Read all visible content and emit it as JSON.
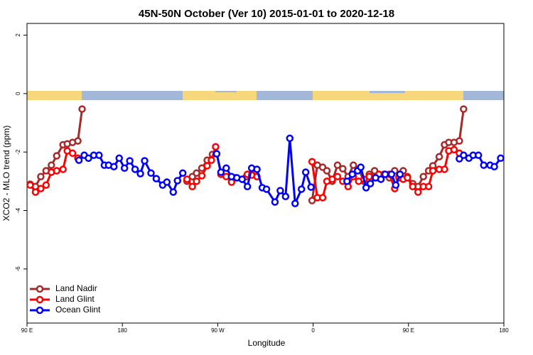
{
  "chart_data": {
    "type": "line",
    "title": "45N-50N October (Ver 10)   2015-01-01 to 2020-12-18",
    "x_label": "Longitude",
    "y_label": "XCO2 - MLO trend (ppm)",
    "xlim": [
      90,
      540
    ],
    "ylim": [
      -7.85,
      2.4
    ],
    "xticks": [
      {
        "value": 90,
        "label": "90 E"
      },
      180,
      {
        "value": 270,
        "label": "90 W"
      },
      {
        "value": 360,
        "label": "0"
      },
      {
        "value": 450,
        "label": "90 E"
      },
      {
        "value": 540,
        "label": "180"
      }
    ],
    "yticks": [
      -6,
      -4,
      -2,
      0,
      2
    ],
    "legend": "bottomleft",
    "series": [
      {
        "name": "Land Nadir",
        "color": "#a52a2a",
        "x": [
          93,
          98,
          103,
          108,
          113,
          118,
          124,
          128,
          133,
          138,
          142,
          null,
          241,
          246,
          250,
          255,
          260,
          265,
          null,
          297,
          302,
          null,
          359,
          364,
          369,
          373,
          378,
          383,
          388,
          393,
          398,
          403,
          408,
          413,
          418,
          422,
          427,
          432,
          437,
          441,
          445,
          449,
          454,
          459,
          464,
          469,
          473,
          479,
          484,
          488,
          493,
          498,
          502
        ],
        "values": [
          -3.1,
          -3.18,
          -2.84,
          -2.64,
          -2.45,
          -2.13,
          -1.75,
          -1.72,
          -1.67,
          -1.62,
          -0.53,
          null,
          -3.0,
          -2.84,
          -2.72,
          -2.55,
          -2.28,
          -2.08,
          null,
          -2.84,
          -2.76,
          null,
          -3.66,
          -2.45,
          -2.52,
          -2.64,
          -3.0,
          -2.45,
          -2.57,
          -2.84,
          -2.45,
          -2.59,
          -3.0,
          -2.76,
          -2.64,
          -2.88,
          -2.76,
          -2.88,
          -2.64,
          -2.84,
          -2.64,
          -2.84,
          -3.08,
          -3.18,
          -2.84,
          -2.64,
          -2.47,
          -2.16,
          -1.75,
          -1.67,
          -1.67,
          -1.62,
          -0.53
        ]
      },
      {
        "name": "Land Glint",
        "color": "#ff0000",
        "x": [
          93,
          98,
          103,
          108,
          113,
          118,
          124,
          128,
          133,
          138,
          null,
          241,
          246,
          250,
          255,
          260,
          264,
          268,
          273,
          278,
          283,
          287,
          293,
          298,
          302,
          307,
          null,
          359,
          364,
          369,
          373,
          378,
          383,
          388,
          393,
          398,
          403,
          408,
          413,
          418,
          422,
          427,
          432,
          437,
          441,
          445,
          449,
          454,
          459,
          464,
          469,
          473,
          479,
          484,
          488,
          493,
          498
        ],
        "values": [
          -3.13,
          -3.37,
          -3.25,
          -3.13,
          -2.69,
          -2.64,
          -2.59,
          -1.96,
          -2.04,
          -2.21,
          null,
          -2.93,
          -3.18,
          -3.0,
          -2.81,
          -2.47,
          -2.28,
          -1.82,
          -2.76,
          -2.84,
          -3.03,
          -2.88,
          -2.93,
          -2.76,
          -2.79,
          -2.84,
          null,
          -2.33,
          -3.56,
          -3.56,
          -3.0,
          -2.93,
          -2.84,
          -3.0,
          -3.18,
          -2.84,
          -3.0,
          -2.93,
          -2.84,
          -2.88,
          -2.76,
          -2.76,
          -2.76,
          -3.25,
          -2.88,
          -2.93,
          -2.88,
          -3.18,
          -3.37,
          -3.18,
          -3.18,
          -2.64,
          -2.59,
          -2.59,
          -1.96,
          -1.92,
          -2.04
        ]
      },
      {
        "name": "Ocean Glint",
        "color": "#0000ff",
        "x": [
          139,
          144,
          148,
          153,
          158,
          163,
          167,
          172,
          177,
          182,
          187,
          192,
          197,
          201,
          207,
          212,
          218,
          222,
          228,
          232,
          237,
          null,
          269,
          273,
          278,
          283,
          288,
          293,
          298,
          302,
          307,
          312,
          316,
          324,
          329,
          334,
          338,
          343,
          349,
          353,
          358,
          null,
          392,
          397,
          402,
          405,
          410,
          414,
          419,
          424,
          428,
          434,
          438,
          442,
          null,
          498,
          502,
          507,
          511,
          516,
          521,
          527,
          531,
          537
        ],
        "values": [
          -2.28,
          -2.11,
          -2.21,
          -2.11,
          -2.11,
          -2.45,
          -2.45,
          -2.5,
          -2.21,
          -2.55,
          -2.3,
          -2.59,
          -2.74,
          -2.3,
          -2.72,
          -2.91,
          -3.13,
          -3.03,
          -3.37,
          -2.98,
          -2.72,
          null,
          -2.06,
          -2.69,
          -2.55,
          -2.84,
          -2.88,
          -2.93,
          -3.18,
          -2.55,
          -2.59,
          -3.22,
          -3.27,
          -3.71,
          -3.32,
          -3.52,
          -1.53,
          -3.76,
          -3.27,
          -2.69,
          -3.2,
          null,
          -3.0,
          -2.76,
          -2.64,
          -2.52,
          -3.22,
          -3.08,
          -2.88,
          -2.93,
          -2.76,
          -2.76,
          -3.13,
          -2.76,
          null,
          -2.23,
          -2.11,
          -2.21,
          -2.11,
          -2.11,
          -2.45,
          -2.45,
          -2.5,
          -2.21
        ]
      }
    ]
  }
}
